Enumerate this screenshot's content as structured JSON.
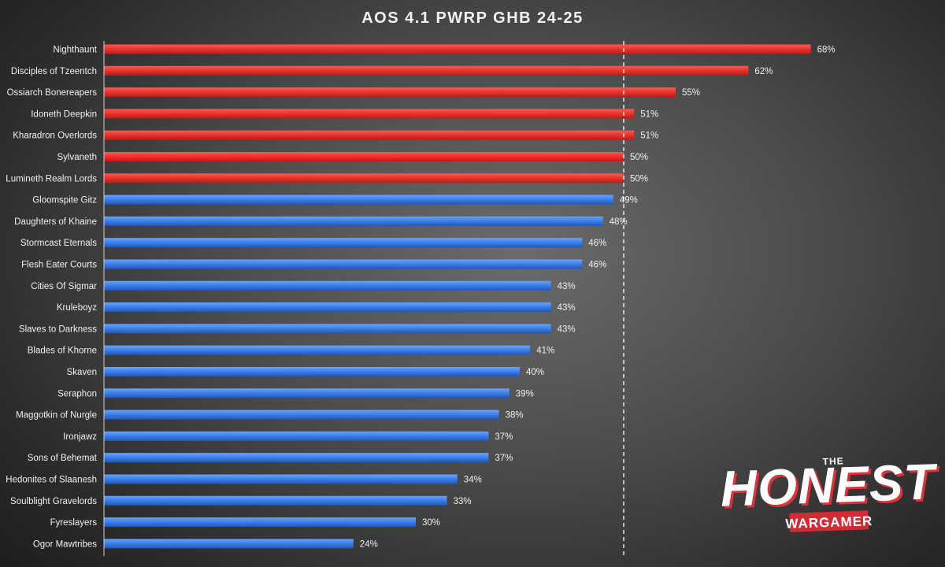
{
  "chart_data": {
    "type": "bar",
    "orientation": "horizontal",
    "title": "AOS 4.1 PWRP GHB 24-25",
    "xlabel": "",
    "ylabel": "",
    "xlim": [
      0,
      100
    ],
    "reference_line": 50,
    "categories": [
      "Nighthaunt",
      "Disciples of Tzeentch",
      "Ossiarch Bonereapers",
      "Idoneth Deepkin",
      "Kharadron Overlords",
      "Sylvaneth",
      "Lumineth Realm Lords",
      "Gloomspite Gitz",
      "Daughters of Khaine",
      "Stormcast Eternals",
      "Flesh Eater Courts",
      "Cities Of Sigmar",
      "Kruleboyz",
      "Slaves to Darkness",
      "Blades of Khorne",
      "Skaven",
      "Seraphon",
      "Maggotkin of Nurgle",
      "Ironjawz",
      "Sons of Behemat",
      "Hedonites of Slaanesh",
      "Soulblight Gravelords",
      "Fyreslayers",
      "Ogor Mawtribes"
    ],
    "values": [
      68,
      62,
      55,
      51,
      51,
      50,
      50,
      49,
      48,
      46,
      46,
      43,
      43,
      43,
      41,
      40,
      39,
      38,
      37,
      37,
      34,
      33,
      30,
      24
    ],
    "value_labels": [
      "68%",
      "62%",
      "55%",
      "51%",
      "51%",
      "50%",
      "50%",
      "49%",
      "48%",
      "46%",
      "46%",
      "43%",
      "43%",
      "43%",
      "41%",
      "40%",
      "39%",
      "38%",
      "37%",
      "37%",
      "34%",
      "33%",
      "30%",
      "24%"
    ],
    "colors": {
      "above_threshold": "#e8322c",
      "below_threshold": "#3a7ee6",
      "reference_line": "#ffffff",
      "axis": "#d0d0d0"
    },
    "grid": false,
    "legend": "none"
  },
  "logo": {
    "top": "THE",
    "main": "HONEST",
    "bottom": "WARGAMER"
  }
}
